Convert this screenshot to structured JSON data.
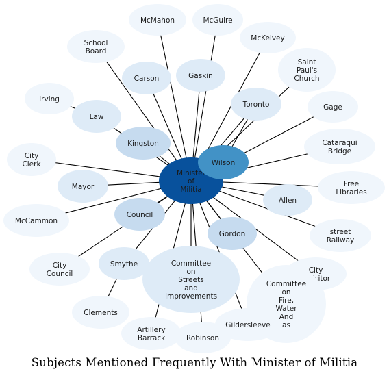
{
  "caption": "Subjects Mentioned Frequently With Minister of Militia",
  "colors": {
    "hub": "#08519c",
    "secondary": "#4292c6",
    "medium": "#c6dbef",
    "light": "#deebf7",
    "pale": "#f0f6fc",
    "edge": "#000000"
  },
  "nodes": [
    {
      "id": "minister",
      "label": "Minister of Militia",
      "shade": "hub"
    },
    {
      "id": "wilson",
      "label": "Wilson",
      "shade": "secondary"
    },
    {
      "id": "kingston",
      "label": "Kingston",
      "shade": "medium"
    },
    {
      "id": "council",
      "label": "Council",
      "shade": "medium"
    },
    {
      "id": "gordon",
      "label": "Gordon",
      "shade": "medium"
    },
    {
      "id": "law",
      "label": "Law",
      "shade": "light"
    },
    {
      "id": "carson",
      "label": "Carson",
      "shade": "light"
    },
    {
      "id": "gaskin",
      "label": "Gaskin",
      "shade": "light"
    },
    {
      "id": "toronto",
      "label": "Toronto",
      "shade": "light"
    },
    {
      "id": "mayor",
      "label": "Mayor",
      "shade": "light"
    },
    {
      "id": "allen",
      "label": "Allen",
      "shade": "light"
    },
    {
      "id": "smythe",
      "label": "Smythe",
      "shade": "light"
    },
    {
      "id": "committee_streets",
      "label": "Committee on Streets and Improvements",
      "shade": "light"
    },
    {
      "id": "committee_fire",
      "label": "Committee on Fire, Water And as",
      "shade": "pale"
    },
    {
      "id": "mcmahon",
      "label": "McMahon",
      "shade": "pale"
    },
    {
      "id": "mcguire",
      "label": "McGuire",
      "shade": "pale"
    },
    {
      "id": "mckelvey",
      "label": "McKelvey",
      "shade": "pale"
    },
    {
      "id": "school_board",
      "label": "School Board",
      "shade": "pale"
    },
    {
      "id": "saint_pauls",
      "label": "Saint Paul's Church",
      "shade": "pale"
    },
    {
      "id": "irving",
      "label": "Irving",
      "shade": "pale"
    },
    {
      "id": "gage",
      "label": "Gage",
      "shade": "pale"
    },
    {
      "id": "cataraqui",
      "label": "Cataraqui Bridge",
      "shade": "pale"
    },
    {
      "id": "city_clerk",
      "label": "City Clerk",
      "shade": "pale"
    },
    {
      "id": "free_libraries",
      "label": "Free Libraries",
      "shade": "pale"
    },
    {
      "id": "mccammon",
      "label": "McCammon",
      "shade": "pale"
    },
    {
      "id": "street_railway",
      "label": "street Railway",
      "shade": "pale"
    },
    {
      "id": "city_council",
      "label": "City Council",
      "shade": "pale"
    },
    {
      "id": "city_solicitor",
      "label": "City Solicitor",
      "shade": "pale"
    },
    {
      "id": "clements",
      "label": "Clements",
      "shade": "pale"
    },
    {
      "id": "artillery_barrack",
      "label": "Artillery Barrack",
      "shade": "pale"
    },
    {
      "id": "robinson",
      "label": "Robinson",
      "shade": "pale"
    },
    {
      "id": "gildersleeve",
      "label": "Gildersleeve",
      "shade": "pale"
    }
  ],
  "edges": [
    [
      "minister",
      "mcmahon"
    ],
    [
      "minister",
      "mcguire"
    ],
    [
      "minister",
      "school_board"
    ],
    [
      "minister",
      "carson"
    ],
    [
      "minister",
      "gaskin"
    ],
    [
      "minister",
      "mckelvey"
    ],
    [
      "minister",
      "toronto"
    ],
    [
      "minister",
      "saint_pauls"
    ],
    [
      "minister",
      "law"
    ],
    [
      "law",
      "irving"
    ],
    [
      "minister",
      "kingston"
    ],
    [
      "minister",
      "gage"
    ],
    [
      "minister",
      "cataraqui"
    ],
    [
      "minister",
      "city_clerk"
    ],
    [
      "minister",
      "mayor"
    ],
    [
      "minister",
      "free_libraries"
    ],
    [
      "minister",
      "allen"
    ],
    [
      "minister",
      "mccammon"
    ],
    [
      "minister",
      "council"
    ],
    [
      "minister",
      "street_railway"
    ],
    [
      "minister",
      "gordon"
    ],
    [
      "minister",
      "city_council"
    ],
    [
      "minister",
      "smythe"
    ],
    [
      "smythe",
      "clements"
    ],
    [
      "minister",
      "committee_streets"
    ],
    [
      "minister",
      "city_solicitor"
    ],
    [
      "minister",
      "committee_fire"
    ],
    [
      "minister",
      "artillery_barrack"
    ],
    [
      "minister",
      "robinson"
    ],
    [
      "minister",
      "gildersleeve"
    ],
    [
      "minister",
      "wilson"
    ],
    [
      "wilson",
      "toronto"
    ]
  ]
}
